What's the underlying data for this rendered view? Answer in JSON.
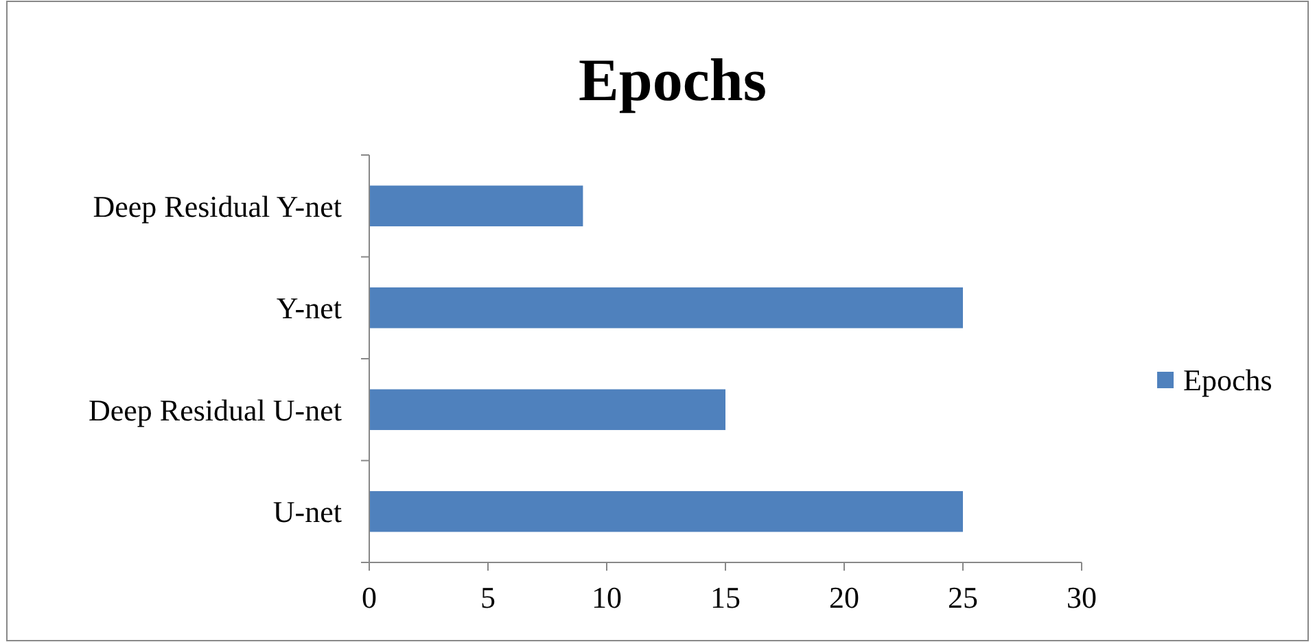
{
  "chart_data": {
    "type": "bar",
    "orientation": "horizontal",
    "title": "Epochs",
    "categories": [
      "Deep Residual Y-net",
      "Y-net",
      "Deep Residual U-net",
      "U-net"
    ],
    "series": [
      {
        "name": "Epochs",
        "color": "#4f81bd",
        "values": [
          9,
          25,
          15,
          25
        ]
      }
    ],
    "xlim": [
      0,
      30
    ],
    "xticks": [
      0,
      5,
      10,
      15,
      20,
      25,
      30
    ],
    "grid": false,
    "legend": "right"
  }
}
